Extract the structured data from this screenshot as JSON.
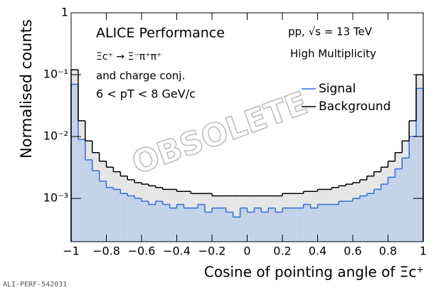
{
  "chart_data": {
    "type": "histogram",
    "annotations": [
      "ALICE Performance",
      "Ξc⁺ → Ξ⁻π⁺π⁺",
      "and charge conj.",
      "6 < pT < 8 GeV/c",
      "pp, √s = 13 TeV",
      "High Multiplicity"
    ],
    "watermark": "OBSOLETE",
    "footer": "ALI-PERF-542031",
    "xlabel": "Cosine of pointing angle of Ξc⁺",
    "ylabel": "Normalised counts",
    "bins": [
      -1,
      -0.96,
      -0.92,
      -0.88,
      -0.84,
      -0.8,
      -0.76,
      -0.72,
      -0.68,
      -0.64,
      -0.6,
      -0.56,
      -0.52,
      -0.48,
      -0.44,
      -0.4,
      -0.36,
      -0.32,
      -0.28,
      -0.24,
      -0.2,
      -0.16,
      -0.12,
      -0.08,
      -0.04,
      0,
      0.04,
      0.08,
      0.12,
      0.16,
      0.2,
      0.24,
      0.28,
      0.32,
      0.36,
      0.4,
      0.44,
      0.48,
      0.52,
      0.56,
      0.6,
      0.64,
      0.68,
      0.72,
      0.76,
      0.8,
      0.84,
      0.88,
      0.92,
      0.96,
      1
    ],
    "series": [
      {
        "name": "Background",
        "color": "#000000",
        "fill": "#e6e6e6",
        "values": [
          0.12,
          0.018,
          0.0085,
          0.0055,
          0.004,
          0.0032,
          0.0027,
          0.0023,
          0.002,
          0.0018,
          0.0017,
          0.0016,
          0.0015,
          0.0014,
          0.0014,
          0.0013,
          0.0013,
          0.0012,
          0.0012,
          0.0012,
          0.0011,
          0.0011,
          0.0011,
          0.0011,
          0.0011,
          0.0011,
          0.0011,
          0.0011,
          0.0011,
          0.0011,
          0.0012,
          0.0012,
          0.0012,
          0.0013,
          0.0013,
          0.0014,
          0.0014,
          0.0015,
          0.0016,
          0.0017,
          0.0018,
          0.002,
          0.0023,
          0.0027,
          0.0032,
          0.004,
          0.0055,
          0.0085,
          0.018,
          0.1
        ]
      },
      {
        "name": "Signal",
        "color": "#2f6fd6",
        "fill": "#c3d3e9",
        "values": [
          0.07,
          0.009,
          0.0042,
          0.0028,
          0.0019,
          0.0015,
          0.0014,
          0.0012,
          0.0011,
          0.001,
          0.0009,
          0.0008,
          0.0009,
          0.0008,
          0.0007,
          0.0008,
          0.0007,
          0.0007,
          0.0008,
          0.0006,
          0.0007,
          0.0007,
          0.0006,
          0.0005,
          0.0007,
          0.0006,
          0.0007,
          0.0006,
          0.0007,
          0.0006,
          0.0007,
          0.0007,
          0.0007,
          0.0008,
          0.0007,
          0.0008,
          0.0008,
          0.0008,
          0.0009,
          0.0009,
          0.001,
          0.0011,
          0.0012,
          0.0014,
          0.0017,
          0.0022,
          0.003,
          0.0045,
          0.01,
          0.06
        ]
      }
    ],
    "xlim": [
      -1,
      1
    ],
    "xticks": [
      {
        "value": -1,
        "label": "−1"
      },
      {
        "value": -0.8,
        "label": "−0.8"
      },
      {
        "value": -0.6,
        "label": "−0.6"
      },
      {
        "value": -0.4,
        "label": "−0.4"
      },
      {
        "value": -0.2,
        "label": "−0.2"
      },
      0,
      0.2,
      0.4,
      0.6,
      0.8,
      1
    ],
    "ylim": [
      0.0002,
      1
    ],
    "yscale": "log",
    "yticks": [
      {
        "value": 0.001,
        "label": "10⁻³"
      },
      {
        "value": 0.01,
        "label": "10⁻²"
      },
      {
        "value": 0.1,
        "label": "10⁻¹"
      },
      1
    ]
  }
}
